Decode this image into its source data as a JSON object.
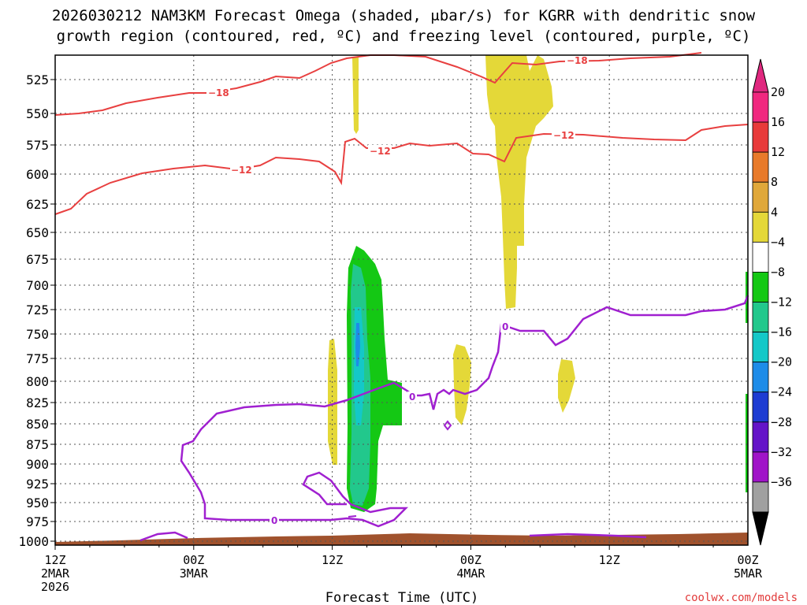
{
  "chart_data": {
    "type": "time-height contour",
    "title_line1": "2026030212 NAM3KM Forecast Omega (shaded, μbar/s) for KGRR with dendritic snow",
    "title_line2": "growth region (contoured, red, ºC) and freezing level (contoured, purple, ºC)",
    "xlabel": "Forecast Time (UTC)",
    "credit": "coolwx.com/models",
    "y_ticks": [
      "525",
      "550",
      "575",
      "600",
      "625",
      "650",
      "675",
      "700",
      "725",
      "750",
      "775",
      "800",
      "825",
      "850",
      "875",
      "900",
      "925",
      "950",
      "975",
      "1000"
    ],
    "x_ticks": [
      {
        "line1": "12Z",
        "line2": "2MAR",
        "line3": "2026"
      },
      {
        "line1": "00Z",
        "line2": "3MAR",
        "line3": ""
      },
      {
        "line1": "12Z",
        "line2": "",
        "line3": ""
      },
      {
        "line1": "00Z",
        "line2": "4MAR",
        "line3": ""
      },
      {
        "line1": "12Z",
        "line2": "",
        "line3": ""
      },
      {
        "line1": "00Z",
        "line2": "5MAR",
        "line3": ""
      }
    ],
    "x_range_hours": [
      0,
      60
    ],
    "y_range_mb": [
      505,
      1010
    ],
    "colorbar": {
      "labels": [
        "20",
        "16",
        "12",
        "8",
        "4",
        "−4",
        "−8",
        "−12",
        "−16",
        "−20",
        "−24",
        "−28",
        "−32",
        "−36"
      ],
      "colors": [
        "#f0287f",
        "#e83a3a",
        "#e87a2a",
        "#e0a83a",
        "#e4d838",
        "#ffffff",
        "#14c814",
        "#22c88c",
        "#14c8c8",
        "#1e8ce8",
        "#1e3cd2",
        "#6414c8",
        "#a014c8",
        "#a0a0a0"
      ],
      "top_triangle_color": "#e0287f",
      "bottom_triangle_color": "#000000"
    },
    "contour_labels": {
      "dgz_cold": "−18",
      "dgz_warm": "−12",
      "freezing": "0"
    },
    "series": [
      {
        "name": "-18C isotherm",
        "color": "#e84040",
        "points_hours_mb": [
          [
            0,
            550
          ],
          [
            6,
            547
          ],
          [
            12,
            531
          ],
          [
            18,
            521
          ],
          [
            24,
            513
          ],
          [
            30,
            501
          ],
          [
            36,
            517
          ],
          [
            40,
            527
          ],
          [
            44,
            514
          ],
          [
            48,
            510
          ],
          [
            54,
            504
          ],
          [
            60,
            505
          ]
        ]
      },
      {
        "name": "-12C isotherm",
        "color": "#e84040",
        "points_hours_mb": [
          [
            0,
            638
          ],
          [
            4,
            614
          ],
          [
            8,
            600
          ],
          [
            12,
            591
          ],
          [
            16,
            599
          ],
          [
            20,
            586
          ],
          [
            24,
            592
          ],
          [
            25,
            606
          ],
          [
            26,
            573
          ],
          [
            28,
            580
          ],
          [
            32,
            576
          ],
          [
            36,
            584
          ],
          [
            38,
            590
          ],
          [
            40,
            572
          ],
          [
            44,
            565
          ],
          [
            48,
            571
          ],
          [
            52,
            568
          ],
          [
            56,
            558
          ],
          [
            60,
            555
          ]
        ]
      },
      {
        "name": "0C freezing level",
        "color": "#a020d0",
        "points_hours_mb": [
          [
            12,
            968
          ],
          [
            18,
            970
          ],
          [
            22,
            965
          ],
          [
            26,
            958
          ],
          [
            30,
            835
          ],
          [
            34,
            842
          ],
          [
            36,
            820
          ],
          [
            38,
            785
          ],
          [
            40,
            745
          ],
          [
            44,
            755
          ],
          [
            48,
            726
          ],
          [
            52,
            728
          ],
          [
            56,
            732
          ],
          [
            60,
            713
          ]
        ]
      }
    ],
    "omega_shaded_regions": [
      {
        "name": "upward motion core",
        "time_range_hours": [
          25.5,
          29.5
        ],
        "pressure_range_mb": [
          665,
          955
        ],
        "min_value": -20
      },
      {
        "name": "weak upward 4MAR",
        "time_range_hours": [
          60,
          60
        ],
        "pressure_range_mb": [
          700,
          930
        ],
        "min_value": -8
      },
      {
        "name": "weak downward",
        "time_range_hours": [
          40,
          43
        ],
        "pressure_range_mb": [
          505,
          725
        ],
        "max_value": 8
      }
    ]
  }
}
